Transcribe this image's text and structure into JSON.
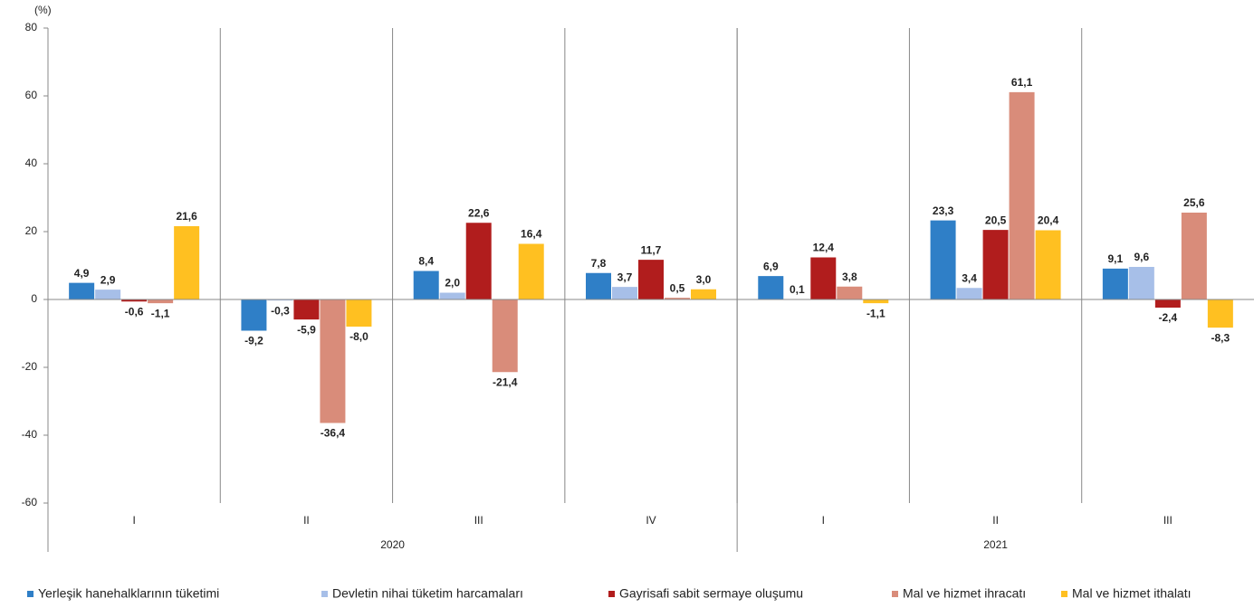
{
  "chart_data": {
    "type": "bar",
    "y_label": "(%)",
    "categories": [
      "I",
      "II",
      "III",
      "IV",
      "I",
      "II",
      "III"
    ],
    "year_groups": [
      {
        "label": "2020",
        "count": 4
      },
      {
        "label": "2021",
        "count": 3
      }
    ],
    "ylim": [
      -60,
      80
    ],
    "yticks": [
      80,
      60,
      40,
      20,
      0,
      -20,
      -40,
      -60
    ],
    "legend": "bottom",
    "series": [
      {
        "name": "Yerleşik hanehalklarının tüketimi",
        "color": "#2f7fc7",
        "values": [
          4.9,
          -9.2,
          8.4,
          7.8,
          6.9,
          23.3,
          9.1
        ],
        "value_labels": [
          "4,9",
          "-9,2",
          "8,4",
          "7,8",
          "6,9",
          "23,3",
          "9,1"
        ]
      },
      {
        "name": "Devletin nihai tüketim harcamaları",
        "color": "#a7bfe8",
        "values": [
          2.9,
          -0.3,
          2.0,
          3.7,
          0.1,
          3.4,
          9.6
        ],
        "value_labels": [
          "2,9",
          "-0,3",
          "2,0",
          "3,7",
          "0,1",
          "3,4",
          "9,6"
        ]
      },
      {
        "name": "Gayrisafi sabit sermaye oluşumu",
        "color": "#b11d1d",
        "values": [
          -0.6,
          -5.9,
          22.6,
          11.7,
          12.4,
          20.5,
          -2.4
        ],
        "value_labels": [
          "-0,6",
          "-5,9",
          "22,6",
          "11,7",
          "12,4",
          "20,5",
          "-2,4"
        ]
      },
      {
        "name": "Mal ve hizmet ihracatı",
        "color": "#d98c7a",
        "values": [
          -1.1,
          -36.4,
          -21.4,
          0.5,
          3.8,
          61.1,
          25.6
        ],
        "value_labels": [
          "-1,1",
          "-36,4",
          "-21,4",
          "0,5",
          "3,8",
          "61,1",
          "25,6"
        ]
      },
      {
        "name": "Mal ve hizmet ithalatı",
        "color": "#ffc021",
        "values": [
          21.6,
          -8.0,
          16.4,
          3.0,
          -1.1,
          20.4,
          -8.3
        ],
        "value_labels": [
          "21,6",
          "-8,0",
          "16,4",
          "3,0",
          "-1,1",
          "20,4",
          "-8,3"
        ]
      }
    ]
  }
}
